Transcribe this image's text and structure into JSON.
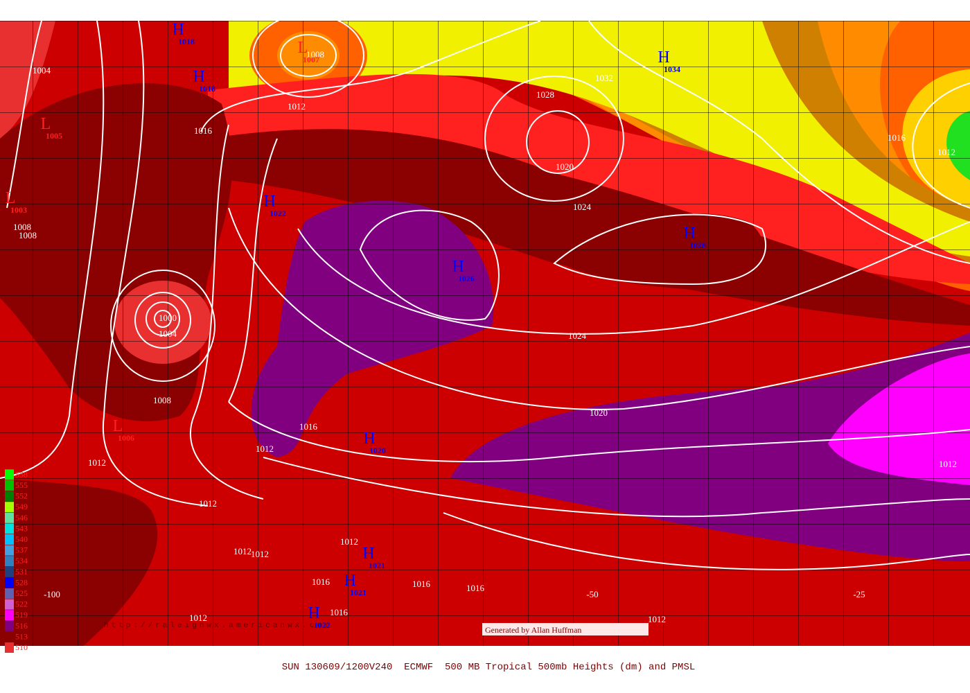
{
  "map": {
    "centers": [
      {
        "letter": "H",
        "value": 1018
      },
      {
        "letter": "H",
        "value": 1018
      },
      {
        "letter": "L",
        "value": 1007
      },
      {
        "letter": "H",
        "value": 1034
      },
      {
        "letter": "L",
        "value": 1005
      },
      {
        "letter": "L",
        "value": 1003
      },
      {
        "letter": "H",
        "value": 1022
      },
      {
        "letter": "H",
        "value": 1028
      },
      {
        "letter": "H",
        "value": 1026
      },
      {
        "letter": "L",
        "value": 1006
      },
      {
        "letter": "H",
        "value": 1020
      },
      {
        "letter": "H",
        "value": 1021
      },
      {
        "letter": "H",
        "value": 1021
      },
      {
        "letter": "H",
        "value": 1022
      }
    ],
    "isobar_labels": [
      1004,
      1016,
      1012,
      1008,
      1028,
      1032,
      1020,
      1024,
      1016,
      1012,
      1008,
      1008,
      1000,
      1004,
      1024,
      1020,
      1008,
      1016,
      1012,
      1012,
      1012,
      1012,
      1012,
      1012,
      1016,
      1016,
      1016,
      1016,
      1012,
      1012,
      1012
    ],
    "longitudes": [
      "-100",
      "-50",
      "-25"
    ],
    "watermark": "http://raleighwx.americanwx.com",
    "credit": "Generated by Allan Huffman",
    "caption": "SUN 130609/1200V240  ECMWF  500 MB Tropical 500mb Heights (dm) and PMSL",
    "legend": [
      {
        "value": 510,
        "color": "#e83030"
      },
      {
        "value": 513,
        "color": "#8b0000"
      },
      {
        "value": 516,
        "color": "#800080"
      },
      {
        "value": 519,
        "color": "#ff00ff"
      },
      {
        "value": 522,
        "color": "#d060d0"
      },
      {
        "value": 525,
        "color": "#6060b0"
      },
      {
        "value": 528,
        "color": "#0000ff"
      },
      {
        "value": 531,
        "color": "#204080"
      },
      {
        "value": 534,
        "color": "#3080c0"
      },
      {
        "value": 537,
        "color": "#40a0e0"
      },
      {
        "value": 540,
        "color": "#00c0ff"
      },
      {
        "value": 543,
        "color": "#00e0e0"
      },
      {
        "value": 546,
        "color": "#60e0a0"
      },
      {
        "value": 549,
        "color": "#a0ff00"
      },
      {
        "value": 552,
        "color": "#008000"
      },
      {
        "value": 555,
        "color": "#00c000"
      },
      {
        "value": 558,
        "color": "#00ff00"
      }
    ]
  }
}
